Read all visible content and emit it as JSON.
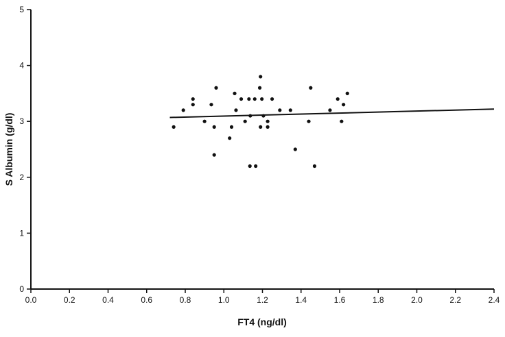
{
  "chart_data": {
    "type": "scatter",
    "title": "",
    "xlabel": "FT4 (ng/dl)",
    "ylabel": "S Albumin (g/dl)",
    "xlim": [
      0,
      2.4
    ],
    "ylim": [
      0,
      5
    ],
    "xticks": [
      "0.0",
      "0.2",
      "0.4",
      "0.6",
      "0.8",
      "1.0",
      "1.2",
      "1.4",
      "1.6",
      "1.8",
      "2.0",
      "2.2",
      "2.4"
    ],
    "yticks": [
      "0",
      "1",
      "2",
      "3",
      "4",
      "5"
    ],
    "grid": false,
    "points": [
      [
        0.74,
        2.9
      ],
      [
        0.79,
        3.2
      ],
      [
        0.84,
        3.3
      ],
      [
        0.84,
        3.4
      ],
      [
        0.9,
        3.0
      ],
      [
        0.96,
        3.6
      ],
      [
        0.935,
        3.3
      ],
      [
        0.95,
        2.9
      ],
      [
        0.95,
        2.4
      ],
      [
        1.03,
        2.7
      ],
      [
        1.04,
        2.9
      ],
      [
        1.056,
        3.5
      ],
      [
        1.063,
        3.2
      ],
      [
        1.09,
        3.4
      ],
      [
        1.11,
        3.0
      ],
      [
        1.13,
        3.4
      ],
      [
        1.137,
        3.1
      ],
      [
        1.135,
        2.2
      ],
      [
        1.165,
        2.2
      ],
      [
        1.16,
        3.4
      ],
      [
        1.19,
        3.8
      ],
      [
        1.186,
        3.6
      ],
      [
        1.197,
        3.4
      ],
      [
        1.205,
        3.1
      ],
      [
        1.19,
        2.9
      ],
      [
        1.227,
        3.0
      ],
      [
        1.227,
        2.9
      ],
      [
        1.25,
        3.4
      ],
      [
        1.29,
        3.2
      ],
      [
        1.345,
        3.2
      ],
      [
        1.37,
        2.5
      ],
      [
        1.45,
        3.6
      ],
      [
        1.44,
        3.0
      ],
      [
        1.47,
        2.2
      ],
      [
        1.55,
        3.2
      ],
      [
        1.59,
        3.4
      ],
      [
        1.64,
        3.5
      ],
      [
        1.62,
        3.3
      ],
      [
        1.61,
        3.0
      ]
    ],
    "regression_line": {
      "x": [
        0.72,
        2.4
      ],
      "y": [
        3.07,
        3.22
      ]
    },
    "color": "#111111"
  }
}
